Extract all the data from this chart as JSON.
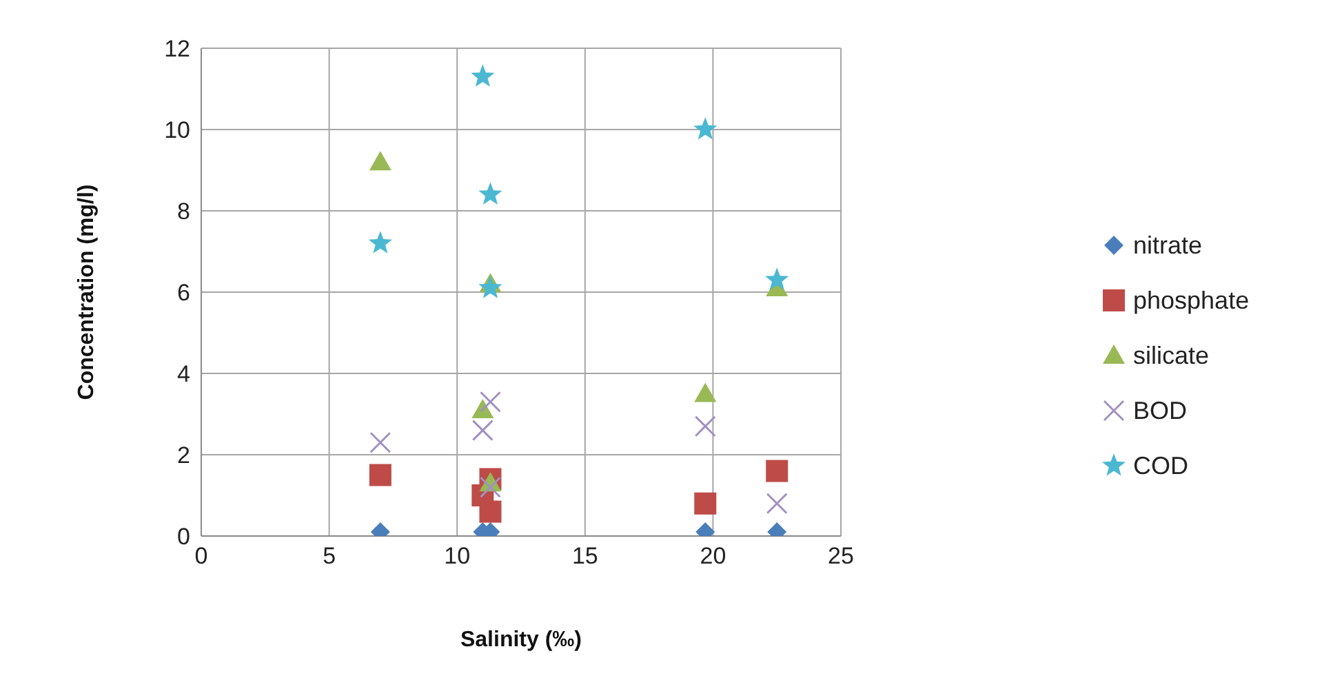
{
  "chart_data": {
    "type": "scatter",
    "xlabel": "Salinity (‰)",
    "ylabel": "Concentration (mg/l)",
    "x": [
      7,
      11,
      11.3,
      11.3,
      19.7,
      22.5
    ],
    "xlim": [
      0,
      25
    ],
    "xticks": [
      0,
      5,
      10,
      15,
      20,
      25
    ],
    "ylim": [
      0,
      12
    ],
    "yticks": [
      0,
      2,
      4,
      6,
      8,
      10,
      12
    ],
    "grid": true,
    "legend": "right",
    "series": [
      {
        "name": "nitrate",
        "color": "#4a7ebb",
        "marker": "diamond",
        "values": [
          0.1,
          0.1,
          0.1,
          null,
          0.1,
          0.1
        ]
      },
      {
        "name": "phosphate",
        "color": "#be4b48",
        "marker": "square",
        "values": [
          1.5,
          1.0,
          1.4,
          0.6,
          0.8,
          1.6
        ]
      },
      {
        "name": "silicate",
        "color": "#98b954",
        "marker": "triangle",
        "values": [
          9.2,
          3.1,
          6.2,
          1.3,
          3.5,
          6.1
        ]
      },
      {
        "name": "BOD",
        "color": "#a190c4",
        "marker": "cross",
        "values": [
          2.3,
          2.6,
          3.3,
          1.2,
          2.7,
          0.8
        ]
      },
      {
        "name": "COD",
        "color": "#4bb8d2",
        "marker": "star",
        "values": [
          7.2,
          11.3,
          8.4,
          6.1,
          10.0,
          6.3
        ]
      }
    ]
  }
}
